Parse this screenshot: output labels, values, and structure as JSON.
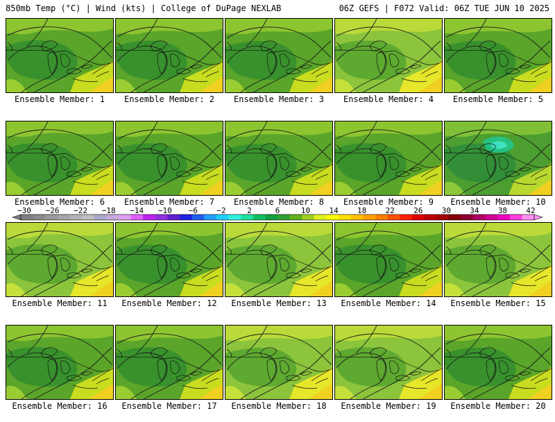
{
  "header": {
    "left": "850mb Temp (°C) | Wind (kts) | College of DuPage NEXLAB",
    "right": "06Z GEFS | F072 Valid: 06Z TUE JUN 10 2025"
  },
  "members": [
    {
      "label": "Ensemble Member: 1",
      "theme": "green"
    },
    {
      "label": "Ensemble Member: 2",
      "theme": "green"
    },
    {
      "label": "Ensemble Member: 3",
      "theme": "green"
    },
    {
      "label": "Ensemble Member: 4",
      "theme": "yellowgreen"
    },
    {
      "label": "Ensemble Member: 5",
      "theme": "green"
    },
    {
      "label": "Ensemble Member: 6",
      "theme": "green"
    },
    {
      "label": "Ensemble Member: 7",
      "theme": "green"
    },
    {
      "label": "Ensemble Member: 8",
      "theme": "green"
    },
    {
      "label": "Ensemble Member: 9",
      "theme": "green"
    },
    {
      "label": "Ensemble Member: 10",
      "theme": "cool"
    },
    {
      "label": "Ensemble Member: 11",
      "theme": "yellowgreen"
    },
    {
      "label": "Ensemble Member: 12",
      "theme": "green"
    },
    {
      "label": "Ensemble Member: 13",
      "theme": "yellowgreen"
    },
    {
      "label": "Ensemble Member: 14",
      "theme": "green"
    },
    {
      "label": "Ensemble Member: 15",
      "theme": "yellowgreen"
    },
    {
      "label": "Ensemble Member: 16",
      "theme": "green"
    },
    {
      "label": "Ensemble Member: 17",
      "theme": "green"
    },
    {
      "label": "Ensemble Member: 18",
      "theme": "yellowgreen"
    },
    {
      "label": "Ensemble Member: 19",
      "theme": "yellowgreen"
    },
    {
      "label": "Ensemble Member: 20",
      "theme": "green"
    }
  ],
  "colorbar": {
    "labels": [
      "−30",
      "−26",
      "−22",
      "−18",
      "−14",
      "−10",
      "−6",
      "−2",
      "2",
      "6",
      "10",
      "14",
      "18",
      "22",
      "26",
      "30",
      "34",
      "38",
      "42"
    ],
    "colors": [
      "#7f7f7f",
      "#8c8c8c",
      "#999999",
      "#a6a6a6",
      "#b3b3b3",
      "#c0c0c0",
      "#a9a9c9",
      "#c9a9e0",
      "#e0a0f0",
      "#e060ff",
      "#c020f0",
      "#9030e0",
      "#6020d0",
      "#2020e0",
      "#2060f0",
      "#20a0ff",
      "#20d0ff",
      "#30f0e0",
      "#20e0a0",
      "#10c060",
      "#10a040",
      "#30a030",
      "#60b020",
      "#a0d020",
      "#e0f020",
      "#ffff00",
      "#ffe000",
      "#ffc000",
      "#ffa000",
      "#ff8000",
      "#ff5000",
      "#ff2000",
      "#e00000",
      "#c00000",
      "#a00000",
      "#800000",
      "#900030",
      "#b00060",
      "#d00090",
      "#f000c0",
      "#ff40e0",
      "#ff90f0"
    ]
  }
}
